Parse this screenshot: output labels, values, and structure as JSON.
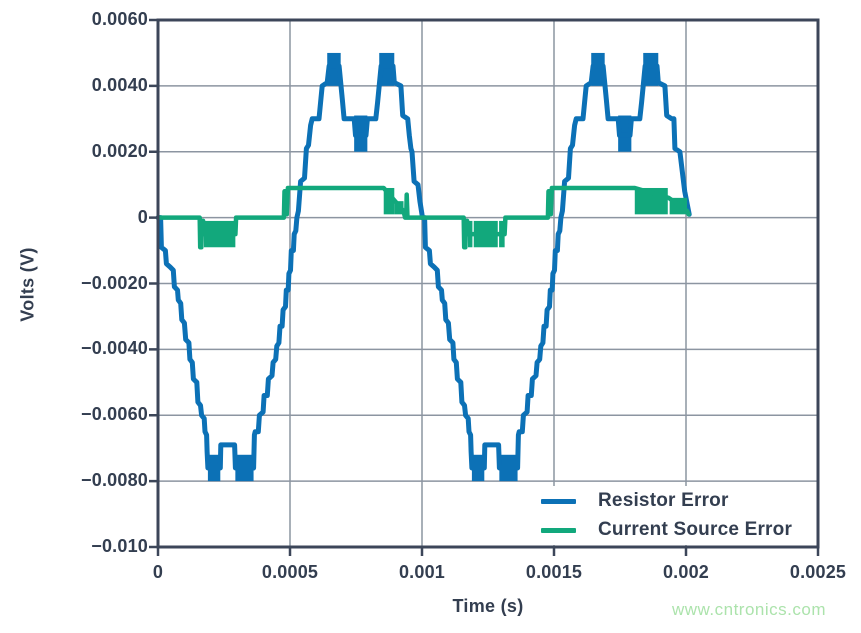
{
  "watermark": {
    "text": "www.cntronics.com",
    "color": "#ACE3AC"
  },
  "colors": {
    "background": "#ffffff",
    "axis_border": "#3C4659",
    "grid": "#8C95A1",
    "text": "#333E50",
    "resistor_error": "#0C71B6",
    "current_source_error": "#12A87C"
  },
  "legend": {
    "entries": [
      {
        "label": "Resistor Error",
        "color": "#0C71B6"
      },
      {
        "label": "Current Source Error",
        "color": "#12A87C"
      }
    ]
  },
  "chart_data": {
    "type": "line",
    "title": "",
    "xlabel": "Time (s)",
    "ylabel": "Volts (V)",
    "xlim": [
      0,
      0.0025
    ],
    "ylim": [
      -0.01,
      0.006
    ],
    "grid": true,
    "legend_position": "lower right",
    "xticks": [
      {
        "v": 0,
        "label": "0"
      },
      {
        "v": 0.0005,
        "label": "0.0005"
      },
      {
        "v": 0.001,
        "label": "0.001"
      },
      {
        "v": 0.0015,
        "label": "0.0015"
      },
      {
        "v": 0.002,
        "label": "0.002"
      },
      {
        "v": 0.0025,
        "label": "0.0025"
      }
    ],
    "yticks": [
      {
        "v": 0.006,
        "label": "0.0060"
      },
      {
        "v": 0.004,
        "label": "0.0040"
      },
      {
        "v": 0.002,
        "label": "0.0020"
      },
      {
        "v": 0.0,
        "label": "0"
      },
      {
        "v": -0.002,
        "label": "−0.0020"
      },
      {
        "v": -0.004,
        "label": "−0.0040"
      },
      {
        "v": -0.006,
        "label": "−0.0060"
      },
      {
        "v": -0.008,
        "label": "−0.0080"
      },
      {
        "v": -0.01,
        "label": "−0.010"
      }
    ],
    "series": [
      {
        "name": "Resistor Error",
        "color": "#0C71B6",
        "width": 5,
        "path": [
          [
            0,
            0
          ],
          [
            1e-05,
            0
          ],
          [
            1.3e-05,
            -0.0009
          ],
          [
            2.8e-05,
            -0.001
          ],
          [
            3.2e-05,
            -0.0014
          ],
          [
            4.6e-05,
            -0.0015
          ],
          [
            5.8e-05,
            -0.0016
          ],
          [
            6.2e-05,
            -0.0021
          ],
          [
            7.4e-05,
            -0.0022
          ],
          [
            7.7e-05,
            -0.0025
          ],
          [
            8.6e-05,
            -0.0026
          ],
          [
            9e-05,
            -0.0031
          ],
          [
            0.0001,
            -0.0032
          ],
          [
            0.000105,
            -0.0037
          ],
          [
            0.000117,
            -0.0038
          ],
          [
            0.000121,
            -0.0043
          ],
          [
            0.00013,
            -0.0044
          ],
          [
            0.000134,
            -0.0049
          ],
          [
            0.000147,
            -0.005
          ],
          [
            0.000151,
            -0.0056
          ],
          [
            0.000161,
            -0.0057
          ],
          [
            0.000165,
            -0.006
          ],
          [
            0.000175,
            -0.0061
          ],
          [
            0.000178,
            -0.0065
          ],
          [
            0.000184,
            -0.0066
          ],
          [
            0.000186,
            -0.0071
          ],
          [
            0.000189,
            -0.0076
          ],
          [
            0.000236,
            -0.0076
          ],
          [
            0.000238,
            -0.0069
          ],
          [
            0.00029,
            -0.0069
          ],
          [
            0.000293,
            -0.0076
          ],
          [
            0.000362,
            -0.0076
          ],
          [
            0.000365,
            -0.0066
          ],
          [
            0.000368,
            -0.0065
          ],
          [
            0.00038,
            -0.0065
          ],
          [
            0.000384,
            -0.006
          ],
          [
            0.000398,
            -0.0059
          ],
          [
            0.000402,
            -0.0054
          ],
          [
            0.000414,
            -0.0054
          ],
          [
            0.000418,
            -0.0049
          ],
          [
            0.000432,
            -0.0048
          ],
          [
            0.000436,
            -0.0044
          ],
          [
            0.000446,
            -0.0043
          ],
          [
            0.00045,
            -0.0039
          ],
          [
            0.000458,
            -0.0038
          ],
          [
            0.000462,
            -0.0033
          ],
          [
            0.00047,
            -0.0033
          ],
          [
            0.000474,
            -0.0028
          ],
          [
            0.000483,
            -0.0027
          ],
          [
            0.000486,
            -0.0022
          ],
          [
            0.000493,
            -0.0022
          ],
          [
            0.000496,
            -0.0017
          ],
          [
            0.000502,
            -0.0016
          ],
          [
            0.000505,
            -0.001
          ],
          [
            0.000513,
            -0.001
          ],
          [
            0.000516,
            -0.0005
          ],
          [
            0.000522,
            -0.0004
          ],
          [
            0.000526,
            0
          ],
          [
            0.000532,
            0.0002
          ],
          [
            0.00054,
            0.0011
          ],
          [
            0.000555,
            0.0012
          ],
          [
            0.000562,
            0.0021
          ],
          [
            0.00057,
            0.0022
          ],
          [
            0.000578,
            0.0028
          ],
          [
            0.000584,
            0.003
          ],
          [
            0.00061,
            0.003
          ],
          [
            0.000616,
            0.0035
          ],
          [
            0.000622,
            0.004
          ],
          [
            0.000641,
            0.0041
          ],
          [
            0.000648,
            0.0046
          ],
          [
            0.000686,
            0.0046
          ],
          [
            0.000692,
            0.0041
          ],
          [
            0.000698,
            0.0036
          ],
          [
            0.000705,
            0.003
          ],
          [
            0.000743,
            0.003
          ],
          [
            0.000748,
            0.0025
          ],
          [
            0.000788,
            0.0025
          ],
          [
            0.000793,
            0.003
          ],
          [
            0.000825,
            0.003
          ],
          [
            0.000832,
            0.0035
          ],
          [
            0.000838,
            0.004
          ],
          [
            0.000845,
            0.0046
          ],
          [
            0.00089,
            0.0046
          ],
          [
            0.000895,
            0.0041
          ],
          [
            0.00092,
            0.004
          ],
          [
            0.000924,
            0.0035
          ],
          [
            0.000927,
            0.0031
          ],
          [
            0.000946,
            0.003
          ],
          [
            0.000952,
            0.0025
          ],
          [
            0.000958,
            0.0021
          ],
          [
            0.000962,
            0.002
          ],
          [
            0.00097,
            0.0011
          ],
          [
            0.000985,
            0.001
          ],
          [
            0.000992,
            0.0005
          ],
          [
            0.001002,
            0
          ],
          [
            0.00101,
            0
          ],
          [
            0.001013,
            -0.0009
          ],
          [
            0.001028,
            -0.001
          ],
          [
            0.001032,
            -0.0014
          ],
          [
            0.001046,
            -0.0015
          ],
          [
            0.001058,
            -0.0016
          ],
          [
            0.001062,
            -0.0021
          ],
          [
            0.001074,
            -0.0022
          ],
          [
            0.001077,
            -0.0025
          ],
          [
            0.001086,
            -0.0026
          ],
          [
            0.00109,
            -0.0031
          ],
          [
            0.0011,
            -0.0032
          ],
          [
            0.001105,
            -0.0037
          ],
          [
            0.001117,
            -0.0038
          ],
          [
            0.001121,
            -0.0043
          ],
          [
            0.00113,
            -0.0044
          ],
          [
            0.001134,
            -0.0049
          ],
          [
            0.001147,
            -0.005
          ],
          [
            0.001151,
            -0.0056
          ],
          [
            0.001161,
            -0.0057
          ],
          [
            0.001165,
            -0.006
          ],
          [
            0.001175,
            -0.0061
          ],
          [
            0.001178,
            -0.0065
          ],
          [
            0.001184,
            -0.0066
          ],
          [
            0.001186,
            -0.0071
          ],
          [
            0.001189,
            -0.0076
          ],
          [
            0.001236,
            -0.0076
          ],
          [
            0.001238,
            -0.0069
          ],
          [
            0.00129,
            -0.0069
          ],
          [
            0.001293,
            -0.0076
          ],
          [
            0.001362,
            -0.0076
          ],
          [
            0.001365,
            -0.0066
          ],
          [
            0.001368,
            -0.0065
          ],
          [
            0.00138,
            -0.0065
          ],
          [
            0.001384,
            -0.006
          ],
          [
            0.001398,
            -0.0059
          ],
          [
            0.001402,
            -0.0054
          ],
          [
            0.001414,
            -0.0054
          ],
          [
            0.001418,
            -0.0049
          ],
          [
            0.001432,
            -0.0048
          ],
          [
            0.001436,
            -0.0044
          ],
          [
            0.001446,
            -0.0043
          ],
          [
            0.00145,
            -0.0039
          ],
          [
            0.001458,
            -0.0038
          ],
          [
            0.001462,
            -0.0033
          ],
          [
            0.00147,
            -0.0033
          ],
          [
            0.001474,
            -0.0028
          ],
          [
            0.001483,
            -0.0027
          ],
          [
            0.001486,
            -0.0022
          ],
          [
            0.001493,
            -0.0022
          ],
          [
            0.001496,
            -0.0017
          ],
          [
            0.001502,
            -0.0016
          ],
          [
            0.001505,
            -0.001
          ],
          [
            0.001513,
            -0.001
          ],
          [
            0.001516,
            -0.0005
          ],
          [
            0.001522,
            -0.0004
          ],
          [
            0.001526,
            0
          ],
          [
            0.001532,
            0.0002
          ],
          [
            0.00154,
            0.0011
          ],
          [
            0.001555,
            0.0012
          ],
          [
            0.001562,
            0.0021
          ],
          [
            0.00157,
            0.0022
          ],
          [
            0.001578,
            0.0028
          ],
          [
            0.001584,
            0.003
          ],
          [
            0.00161,
            0.003
          ],
          [
            0.001616,
            0.0035
          ],
          [
            0.001622,
            0.004
          ],
          [
            0.001641,
            0.0041
          ],
          [
            0.001648,
            0.0046
          ],
          [
            0.001686,
            0.0046
          ],
          [
            0.001692,
            0.0041
          ],
          [
            0.001698,
            0.0036
          ],
          [
            0.001705,
            0.003
          ],
          [
            0.001743,
            0.003
          ],
          [
            0.001748,
            0.0025
          ],
          [
            0.001788,
            0.0025
          ],
          [
            0.001793,
            0.003
          ],
          [
            0.001825,
            0.003
          ],
          [
            0.001832,
            0.0035
          ],
          [
            0.001838,
            0.004
          ],
          [
            0.001845,
            0.0046
          ],
          [
            0.00189,
            0.0046
          ],
          [
            0.001895,
            0.0041
          ],
          [
            0.00192,
            0.004
          ],
          [
            0.001924,
            0.0035
          ],
          [
            0.001927,
            0.0031
          ],
          [
            0.001946,
            0.003
          ],
          [
            0.001954,
            0.003
          ],
          [
            0.001958,
            0.0021
          ],
          [
            0.001977,
            0.002
          ],
          [
            0.001995,
            0.0008
          ],
          [
            0.002012,
            0.0001
          ]
        ],
        "bands": [
          [
            0.000189,
            0.000236,
            -0.008,
            -0.0072
          ],
          [
            0.000293,
            0.000362,
            -0.008,
            -0.0072
          ],
          [
            0.000641,
            0.000692,
            0.004,
            0.005
          ],
          [
            0.000743,
            0.000793,
            0.002,
            0.0031
          ],
          [
            0.000838,
            0.000895,
            0.004,
            0.005
          ],
          [
            0.001189,
            0.001236,
            -0.008,
            -0.0072
          ],
          [
            0.001293,
            0.001362,
            -0.008,
            -0.0072
          ],
          [
            0.001641,
            0.001692,
            0.004,
            0.005
          ],
          [
            0.001743,
            0.001793,
            0.002,
            0.0031
          ],
          [
            0.001838,
            0.001895,
            0.004,
            0.005
          ]
        ]
      },
      {
        "name": "Current Source Error",
        "color": "#12A87C",
        "width": 4.5,
        "path": [
          [
            0,
            0
          ],
          [
            0.000158,
            0
          ],
          [
            0.00016,
            -0.0009
          ],
          [
            0.000164,
            -0.0009
          ],
          [
            0.000167,
            -0.0001
          ],
          [
            0.000171,
            -0.0001
          ],
          [
            0.000174,
            -0.0005
          ],
          [
            0.000293,
            -0.0005
          ],
          [
            0.000296,
            0
          ],
          [
            0.000477,
            0
          ],
          [
            0.000479,
            0.0008
          ],
          [
            0.000482,
            0.0008
          ],
          [
            0.000485,
            0.0001
          ],
          [
            0.000488,
            0.0001
          ],
          [
            0.000492,
            0.0009
          ],
          [
            0.000855,
            0.0009
          ],
          [
            0.00093,
            0.0002
          ],
          [
            0.000936,
            0
          ],
          [
            0.00094,
            0
          ],
          [
            0.000942,
            0.0007
          ],
          [
            0.000945,
            0
          ],
          [
            0.001158,
            0
          ],
          [
            0.00116,
            -0.0009
          ],
          [
            0.001164,
            -0.0009
          ],
          [
            0.001167,
            -0.0001
          ],
          [
            0.001171,
            -0.0001
          ],
          [
            0.001174,
            -0.0005
          ],
          [
            0.001313,
            -0.0005
          ],
          [
            0.001316,
            0
          ],
          [
            0.001477,
            0
          ],
          [
            0.001479,
            0.0008
          ],
          [
            0.001482,
            0.0008
          ],
          [
            0.001485,
            0.0001
          ],
          [
            0.001488,
            0.0001
          ],
          [
            0.001492,
            0.0009
          ],
          [
            0.001806,
            0.0009
          ],
          [
            0.001935,
            0.0006
          ],
          [
            0.002004,
            0.0002
          ],
          [
            0.00201,
            0.0001
          ]
        ],
        "bands": [
          [
            0.000174,
            0.000293,
            -0.0009,
            -0.0001
          ],
          [
            0.000855,
            0.000895,
            0.0001,
            0.0009
          ],
          [
            0.000895,
            0.00093,
            0.0001,
            0.0005
          ],
          [
            0.001174,
            0.001191,
            -0.0009,
            -0.0001
          ],
          [
            0.001196,
            0.001287,
            -0.0009,
            -0.0001
          ],
          [
            0.001292,
            0.001313,
            -0.0009,
            -0.0001
          ],
          [
            0.001806,
            0.001931,
            0.0001,
            0.0009
          ],
          [
            0.001938,
            0.002004,
            0.0001,
            0.0006
          ]
        ]
      }
    ]
  }
}
